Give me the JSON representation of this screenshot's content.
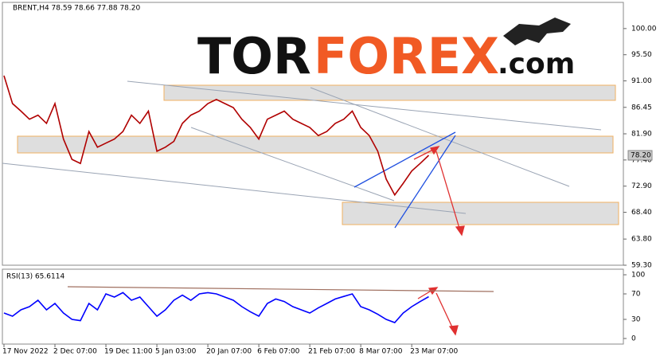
{
  "logo": {
    "part1": "TOR",
    "part2": "FOREX",
    "part3": ".com"
  },
  "chart_data": [
    {
      "type": "line",
      "title": "BRENT,H4  78.59 78.66 77.88 78.20",
      "price_label": "78.20",
      "series": [
        {
          "name": "BRENT",
          "color": "#b00000",
          "values": [
            91.9,
            87.1,
            85.8,
            84.4,
            85.1,
            83.7,
            87.1,
            81.0,
            77.5,
            76.8,
            82.3,
            79.6,
            80.3,
            81.0,
            82.3,
            85.1,
            83.7,
            85.8,
            78.9,
            79.6,
            80.6,
            83.7,
            85.1,
            85.8,
            87.1,
            87.8,
            87.1,
            86.4,
            84.4,
            83.0,
            81.0,
            84.4,
            85.1,
            85.8,
            84.4,
            83.7,
            83.0,
            81.6,
            82.3,
            83.7,
            84.4,
            85.8,
            83.0,
            81.6,
            78.9,
            74.1,
            71.4,
            73.4,
            75.5,
            76.8,
            78.2
          ]
        }
      ],
      "ylim": [
        59.3,
        104.5
      ],
      "yticks": [
        {
          "value": 100,
          "label": "100.00"
        },
        {
          "value": 95.5,
          "label": "95.50"
        },
        {
          "value": 91,
          "label": "91.00"
        },
        86.45,
        {
          "value": 81.9,
          "label": "81.90"
        },
        {
          "value": 77.4,
          "label": "77.40"
        },
        {
          "value": 72.9,
          "label": "72.90"
        },
        {
          "value": 68.4,
          "label": "68.40"
        },
        {
          "value": 63.8,
          "label": "63.80"
        },
        {
          "value": 59.3,
          "label": "59.30"
        }
      ]
    },
    {
      "type": "line",
      "title": "RSI(13) 65.6114",
      "categories": [
        "17 Nov 2022",
        null,
        null,
        null,
        null,
        null,
        "2 Dec 07:00",
        null,
        null,
        null,
        null,
        null,
        "19 Dec 11:00",
        null,
        null,
        null,
        null,
        null,
        "5 Jan 03:00",
        null,
        null,
        null,
        null,
        null,
        "20 Jan 07:00",
        null,
        null,
        null,
        null,
        null,
        "6 Feb 07:00",
        null,
        null,
        null,
        null,
        null,
        "21 Feb 07:00",
        null,
        null,
        null,
        null,
        null,
        "8 Mar 07:00",
        null,
        null,
        null,
        null,
        null,
        "23 Mar 07:00",
        null,
        null
      ],
      "series": [
        {
          "name": "RSI(13)",
          "color": "#0000ff",
          "values": [
            40,
            35,
            45,
            50,
            60,
            45,
            55,
            40,
            30,
            28,
            55,
            45,
            70,
            65,
            72,
            60,
            65,
            50,
            35,
            45,
            60,
            68,
            60,
            70,
            72,
            70,
            65,
            60,
            50,
            42,
            35,
            55,
            62,
            58,
            50,
            45,
            40,
            48,
            55,
            62,
            66,
            70,
            50,
            45,
            38,
            30,
            25,
            40,
            50,
            58,
            65.6114
          ]
        }
      ],
      "ylim": [
        -8.75,
        108.75
      ],
      "yticks": [
        100,
        70,
        30,
        0
      ]
    }
  ]
}
